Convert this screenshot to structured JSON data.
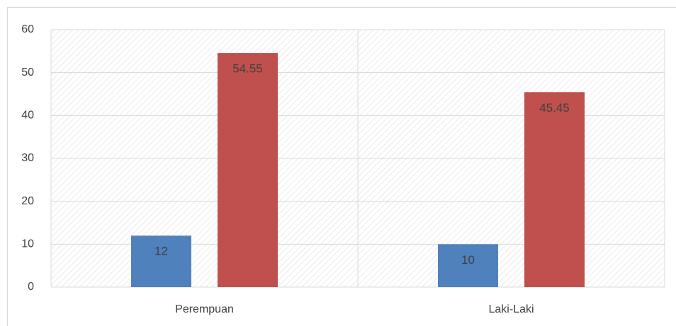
{
  "chart_data": {
    "type": "bar",
    "categories": [
      "Perempuan",
      "Laki-Laki"
    ],
    "series": [
      {
        "color": "#4f81bd",
        "values": [
          12,
          10
        ]
      },
      {
        "color": "#c0504d",
        "values": [
          54.55,
          45.45
        ]
      }
    ],
    "ylim": [
      0,
      60
    ],
    "yticks": [
      0,
      10,
      20,
      30,
      40,
      50,
      60
    ],
    "grid": true
  }
}
